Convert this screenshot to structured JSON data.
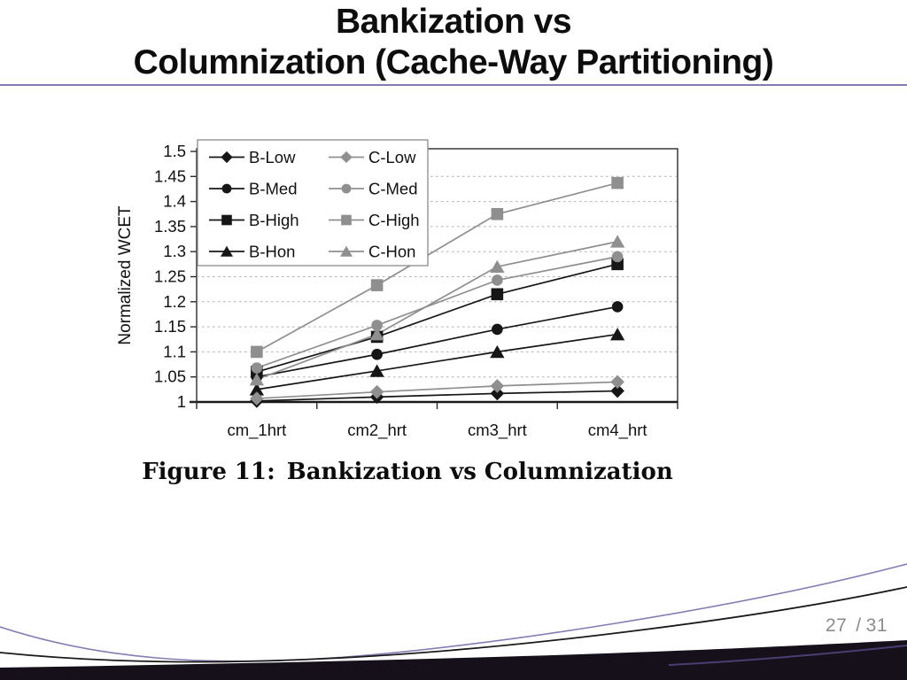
{
  "slide": {
    "title_line1": "Bankization vs",
    "title_line2": "Columnization (Cache-Way Partitioning)",
    "caption_prefix": "Figure 11:",
    "caption_text": "Bankization vs Columnization",
    "page_current": "27",
    "page_separator": "/",
    "page_total": "31",
    "accent_purple": "#857cb2",
    "decor_purple_dark": "#4a3d72",
    "decor_band_black": "#15101a",
    "decor_line_black": "#1a1a1a"
  },
  "chart_data": {
    "type": "line",
    "title": "",
    "xlabel": "",
    "ylabel": "Normalized WCET",
    "categories": [
      "cm_1hrt",
      "cm2_hrt",
      "cm3_hrt",
      "cm4_hrt"
    ],
    "ylim": [
      1.0,
      1.5
    ],
    "ytick_step": 0.05,
    "ytick_labels": [
      "1",
      "1.05",
      "1.1",
      "1.15",
      "1.2",
      "1.25",
      "1.3",
      "1.35",
      "1.4",
      "1.45",
      "1.5"
    ],
    "grid": "horizontal-dashed",
    "gridline_color": "#b0b0b0",
    "axis_color": "#1a1a1a",
    "legend_position": "top-left-overlay-two-columns",
    "series_black_color": "#161616",
    "series_gray_color": "#8f8f8f",
    "series": [
      {
        "name": "B-Low",
        "marker": "diamond",
        "color": "#161616",
        "values": [
          1.002,
          1.01,
          1.017,
          1.022
        ]
      },
      {
        "name": "B-Med",
        "marker": "circle",
        "color": "#161616",
        "values": [
          1.05,
          1.095,
          1.145,
          1.19
        ]
      },
      {
        "name": "B-High",
        "marker": "square",
        "color": "#161616",
        "values": [
          1.06,
          1.13,
          1.215,
          1.275
        ]
      },
      {
        "name": "B-Hon",
        "marker": "triangle",
        "color": "#161616",
        "values": [
          1.025,
          1.062,
          1.1,
          1.135
        ]
      },
      {
        "name": "C-Low",
        "marker": "diamond",
        "color": "#8f8f8f",
        "values": [
          1.007,
          1.02,
          1.032,
          1.04
        ]
      },
      {
        "name": "C-Med",
        "marker": "circle",
        "color": "#8f8f8f",
        "values": [
          1.068,
          1.153,
          1.243,
          1.29
        ]
      },
      {
        "name": "C-High",
        "marker": "square",
        "color": "#8f8f8f",
        "values": [
          1.1,
          1.233,
          1.375,
          1.437
        ]
      },
      {
        "name": "C-Hon",
        "marker": "triangle",
        "color": "#8f8f8f",
        "values": [
          1.045,
          1.135,
          1.27,
          1.32
        ]
      }
    ],
    "legend_rows": [
      [
        "B-Low",
        "C-Low"
      ],
      [
        "B-Med",
        "C-Med"
      ],
      [
        "B-High",
        "C-High"
      ],
      [
        "B-Hon",
        "C-Hon"
      ]
    ]
  }
}
